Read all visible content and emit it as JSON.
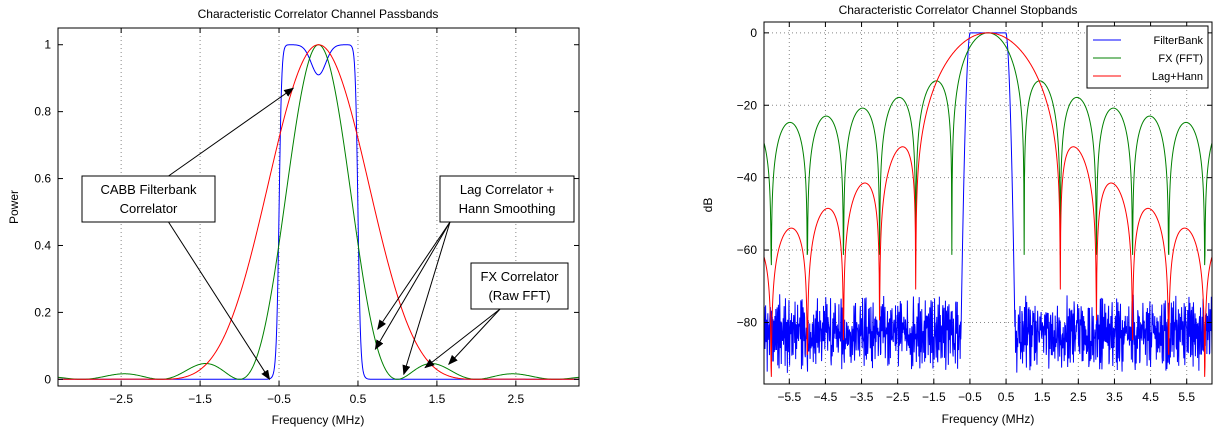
{
  "chart_data": [
    {
      "type": "line",
      "title": "Characteristic Correlator Channel Passbands",
      "xlabel": "Frequency (MHz)",
      "ylabel": "Power",
      "xlim": [
        -3.3,
        3.3
      ],
      "ylim": [
        -0.02,
        1.05
      ],
      "xticks": [
        -2.5,
        -1.5,
        -0.5,
        0.5,
        1.5,
        2.5
      ],
      "xtick_labels": [
        "−2.5",
        "−1.5",
        "−0.5",
        "0.5",
        "1.5",
        "2.5"
      ],
      "yticks": [
        0,
        0.2,
        0.4,
        0.6,
        0.8,
        1
      ],
      "ytick_labels": [
        "0",
        "0.2",
        "0.4",
        "0.6",
        "0.8",
        "1"
      ],
      "grid": "vertical-dotted",
      "series": [
        {
          "model": "filterbank",
          "color": "#0000ff"
        },
        {
          "model": "fft",
          "color": "#008000"
        },
        {
          "model": "hann",
          "color": "#ff0000"
        }
      ],
      "annotations": [
        {
          "lines": [
            "CABB Filterbank",
            "Correlator"
          ],
          "arrows_to": [
            [
              -0.32,
              0.87
            ],
            [
              -0.62,
              0.0
            ]
          ]
        },
        {
          "lines": [
            "Lag Correlator +",
            "Hann Smoothing"
          ],
          "arrows_to": [
            [
              0.75,
              0.15
            ],
            [
              0.72,
              0.09
            ],
            [
              1.08,
              0.015
            ]
          ]
        },
        {
          "lines": [
            "FX Correlator",
            "(Raw FFT)"
          ],
          "arrows_to": [
            [
              1.35,
              0.035
            ],
            [
              1.65,
              0.045
            ]
          ]
        }
      ]
    },
    {
      "type": "line",
      "title": "Characteristic Correlator Channel Stopbands",
      "xlabel": "Frequency (MHz)",
      "ylabel": "dB",
      "xlim": [
        -6.2,
        6.2
      ],
      "ylim": [
        -97,
        3
      ],
      "xticks": [
        -5.5,
        -4.5,
        -3.5,
        -2.5,
        -1.5,
        -0.5,
        0.5,
        1.5,
        2.5,
        3.5,
        4.5,
        5.5
      ],
      "xtick_labels": [
        "−5.5",
        "−4.5",
        "−3.5",
        "−2.5",
        "−1.5",
        "−0.5",
        "0.5",
        "1.5",
        "2.5",
        "3.5",
        "4.5",
        "5.5"
      ],
      "yticks": [
        0,
        -20,
        -40,
        -60,
        -80
      ],
      "ytick_labels": [
        "0",
        "−20",
        "−40",
        "−60",
        "−80"
      ],
      "grid": "both-dotted",
      "legend_position": "top-right",
      "series": [
        {
          "name": "FilterBank",
          "model": "filterbank",
          "color": "#0000ff"
        },
        {
          "name": "FX (FFT)",
          "model": "fft",
          "color": "#008000"
        },
        {
          "name": "Lag+Hann",
          "model": "hann",
          "color": "#ff0000"
        }
      ]
    }
  ]
}
